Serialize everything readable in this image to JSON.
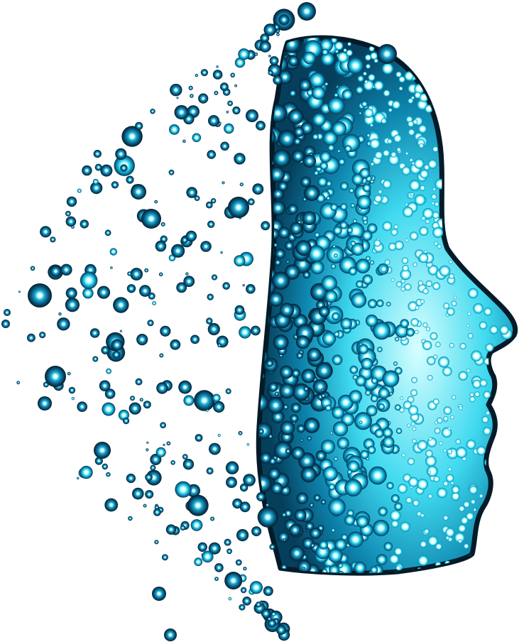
{
  "artwork": {
    "subject": "particle-face-profile",
    "colors": {
      "background": "#ffffff",
      "bubble_dark": "#012433",
      "bubble_mid": "#0a5f86",
      "bubble_cyan": "#14c8e6",
      "bubble_light": "#9ff6ff",
      "highlight": "#ffffff"
    }
  }
}
